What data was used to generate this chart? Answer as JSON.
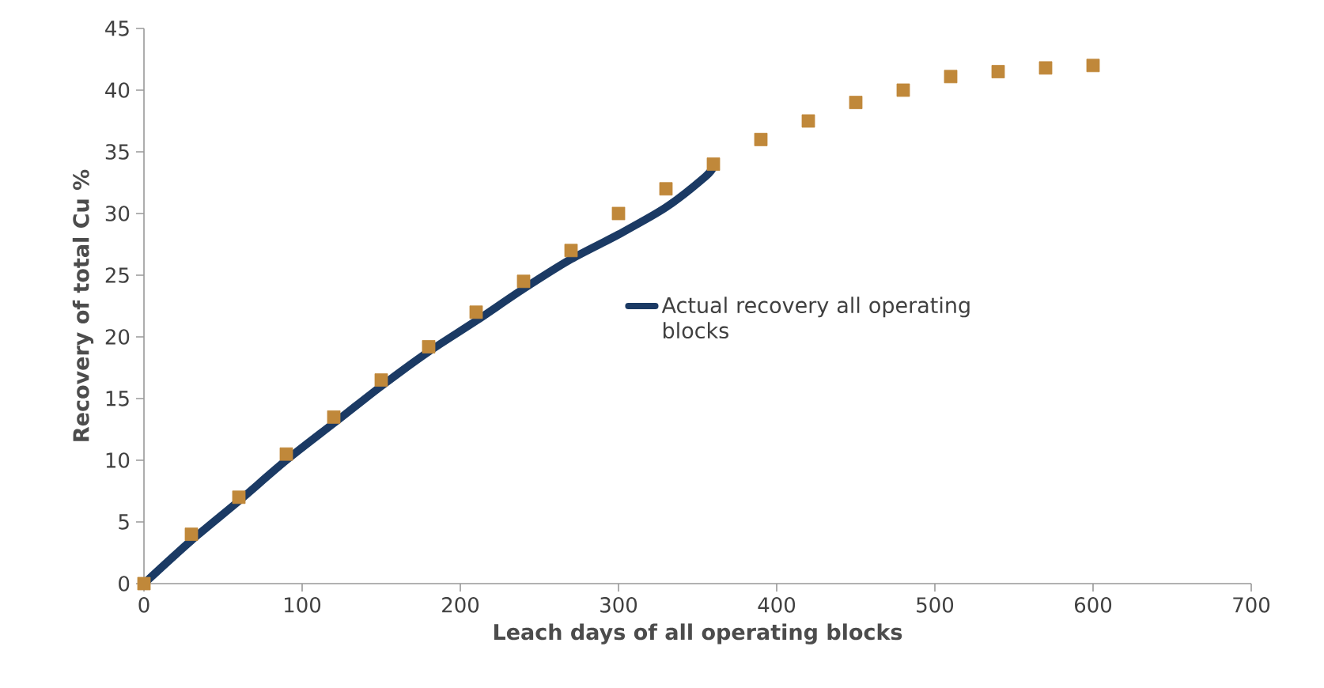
{
  "chart_data": {
    "type": "line",
    "xlabel": "Leach days of all operating blocks",
    "ylabel": "Recovery of total Cu %",
    "xlim": [
      0,
      700
    ],
    "xticks": [
      0,
      100,
      200,
      300,
      400,
      500,
      600,
      700
    ],
    "ylim": [
      0,
      45
    ],
    "yticks": [
      0,
      5,
      10,
      15,
      20,
      25,
      30,
      35,
      40,
      45
    ],
    "grid": false,
    "legend": "right",
    "series": [
      {
        "name": "Actual recovery all operating blocks",
        "color": "#1b3a64",
        "line_style": "solid",
        "marker": "none",
        "x": [
          0,
          30,
          60,
          90,
          120,
          150,
          180,
          210,
          240,
          270,
          300,
          330,
          355,
          360
        ],
        "values": [
          0,
          3.5,
          6.7,
          10,
          13,
          16,
          18.8,
          21.3,
          23.9,
          26.3,
          28.3,
          30.5,
          33,
          33.8
        ]
      },
      {
        "type": "scatter",
        "color": "#c0883a",
        "marker": "square",
        "x": [
          0,
          30,
          60,
          90,
          120,
          150,
          180,
          210,
          240,
          270,
          300,
          330,
          360,
          390,
          420,
          450,
          480,
          510,
          540,
          570,
          600
        ],
        "values": [
          0,
          4,
          7,
          10.5,
          13.5,
          16.5,
          19.2,
          22,
          24.5,
          27,
          30,
          32,
          34,
          36,
          37.5,
          39,
          40,
          41.1,
          41.5,
          41.8,
          42
        ]
      }
    ]
  }
}
